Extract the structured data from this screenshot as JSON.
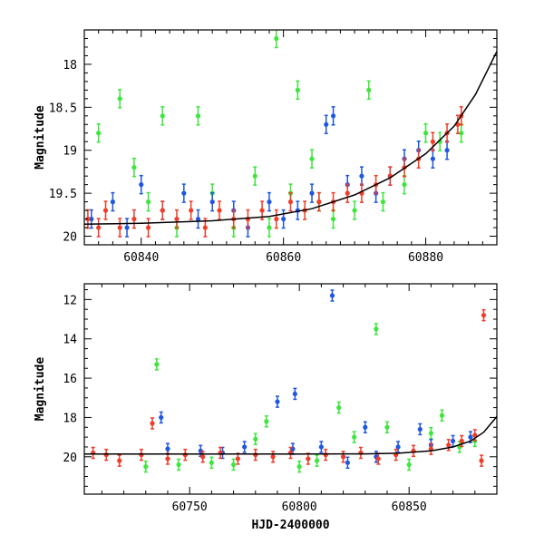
{
  "colors": {
    "blue": "#1f57e0",
    "green": "#3ce63c",
    "red": "#f03c28",
    "model": "#000000",
    "frame": "#000000"
  },
  "chart_data": [
    {
      "type": "scatter",
      "title": "",
      "xlabel": "",
      "ylabel": "Magnitude",
      "xlim": [
        60832,
        60890
      ],
      "ylim": [
        20.1,
        17.6
      ],
      "y_inverted": true,
      "x_ticks": [
        60840,
        60860,
        60880
      ],
      "y_ticks": [
        18,
        18.5,
        19,
        19.5,
        20
      ],
      "grid": false,
      "legend": "none",
      "series": [
        {
          "color": "blue",
          "error_bars": true,
          "points": [
            [
              60833,
              19.8
            ],
            [
              60836,
              19.6
            ],
            [
              60838,
              19.9
            ],
            [
              60840,
              19.4
            ],
            [
              60843,
              19.7
            ],
            [
              60846,
              19.5
            ],
            [
              60848,
              19.8
            ],
            [
              60850,
              19.6
            ],
            [
              60853,
              19.7
            ],
            [
              60855,
              19.9
            ],
            [
              60858,
              19.6
            ],
            [
              60860,
              19.8
            ],
            [
              60862,
              19.7
            ],
            [
              60864,
              19.5
            ],
            [
              60866,
              18.7
            ],
            [
              60867,
              18.6
            ],
            [
              60869,
              19.4
            ],
            [
              60871,
              19.3
            ],
            [
              60873,
              19.5
            ],
            [
              60875,
              19.3
            ],
            [
              60877,
              19.1
            ],
            [
              60879,
              19.0
            ],
            [
              60881,
              19.1
            ],
            [
              60883,
              19.0
            ]
          ]
        },
        {
          "color": "green",
          "error_bars": true,
          "points": [
            [
              60834,
              18.8
            ],
            [
              60837,
              18.4
            ],
            [
              60839,
              19.2
            ],
            [
              60841,
              19.6
            ],
            [
              60843,
              18.6
            ],
            [
              60845,
              19.9
            ],
            [
              60848,
              18.6
            ],
            [
              60850,
              19.5
            ],
            [
              60853,
              19.9
            ],
            [
              60856,
              19.3
            ],
            [
              60858,
              19.9
            ],
            [
              60859,
              17.7
            ],
            [
              60861,
              19.5
            ],
            [
              60862,
              18.3
            ],
            [
              60864,
              19.1
            ],
            [
              60865,
              19.6
            ],
            [
              60867,
              19.8
            ],
            [
              60870,
              19.7
            ],
            [
              60872,
              18.3
            ],
            [
              60874,
              19.6
            ],
            [
              60877,
              19.4
            ],
            [
              60880,
              18.8
            ],
            [
              60882,
              18.9
            ],
            [
              60885,
              18.8
            ]
          ]
        },
        {
          "color": "red",
          "error_bars": true,
          "points": [
            [
              60832.5,
              19.8
            ],
            [
              60834,
              19.9
            ],
            [
              60835,
              19.7
            ],
            [
              60837,
              19.9
            ],
            [
              60839,
              19.8
            ],
            [
              60841,
              19.9
            ],
            [
              60843,
              19.7
            ],
            [
              60845,
              19.8
            ],
            [
              60847,
              19.7
            ],
            [
              60849,
              19.9
            ],
            [
              60851,
              19.7
            ],
            [
              60853,
              19.8
            ],
            [
              60855,
              19.8
            ],
            [
              60857,
              19.7
            ],
            [
              60859,
              19.8
            ],
            [
              60861,
              19.6
            ],
            [
              60863,
              19.7
            ],
            [
              60865,
              19.6
            ],
            [
              60867,
              19.6
            ],
            [
              60869,
              19.5
            ],
            [
              60871,
              19.5
            ],
            [
              60873,
              19.4
            ],
            [
              60875,
              19.3
            ],
            [
              60877,
              19.2
            ],
            [
              60879,
              19.1
            ],
            [
              60881,
              18.9
            ],
            [
              60883,
              18.8
            ],
            [
              60884.5,
              18.7
            ],
            [
              60885,
              18.6
            ]
          ]
        }
      ],
      "model_curve": [
        [
          60832,
          19.86
        ],
        [
          60840,
          19.85
        ],
        [
          60850,
          19.82
        ],
        [
          60858,
          19.77
        ],
        [
          60864,
          19.68
        ],
        [
          60870,
          19.52
        ],
        [
          60875,
          19.32
        ],
        [
          60880,
          19.04
        ],
        [
          60884,
          18.72
        ],
        [
          60887,
          18.35
        ],
        [
          60890,
          17.85
        ]
      ]
    },
    {
      "type": "scatter",
      "title": "",
      "xlabel": "HJD-2400000",
      "ylabel": "Magnitude",
      "xlim": [
        60702,
        60890
      ],
      "ylim": [
        21.9,
        11.2
      ],
      "y_inverted": true,
      "x_ticks": [
        60750,
        60800,
        60850
      ],
      "y_ticks": [
        12,
        14,
        16,
        18,
        20
      ],
      "grid": false,
      "legend": "none",
      "series": [
        {
          "color": "blue",
          "error_bars": true,
          "points": [
            [
              60737,
              18.0
            ],
            [
              60740,
              19.6
            ],
            [
              60755,
              19.7
            ],
            [
              60765,
              19.8
            ],
            [
              60775,
              19.5
            ],
            [
              60790,
              17.2
            ],
            [
              60797,
              19.6
            ],
            [
              60798,
              16.8
            ],
            [
              60810,
              19.5
            ],
            [
              60815,
              11.8
            ],
            [
              60822,
              20.3
            ],
            [
              60830,
              18.5
            ],
            [
              60835,
              20.0
            ],
            [
              60845,
              19.5
            ],
            [
              60855,
              18.6
            ],
            [
              60860,
              19.4
            ],
            [
              60870,
              19.2
            ],
            [
              60878,
              19.0
            ]
          ]
        },
        {
          "color": "green",
          "error_bars": true,
          "points": [
            [
              60735,
              15.3
            ],
            [
              60730,
              20.5
            ],
            [
              60745,
              20.4
            ],
            [
              60760,
              20.3
            ],
            [
              60770,
              20.4
            ],
            [
              60780,
              19.1
            ],
            [
              60785,
              18.2
            ],
            [
              60800,
              20.5
            ],
            [
              60808,
              20.2
            ],
            [
              60818,
              17.5
            ],
            [
              60825,
              19.0
            ],
            [
              60835,
              13.5
            ],
            [
              60840,
              18.5
            ],
            [
              60850,
              20.4
            ],
            [
              60860,
              18.8
            ],
            [
              60865,
              17.9
            ],
            [
              60873,
              19.5
            ],
            [
              60880,
              19.2
            ]
          ]
        },
        {
          "color": "red",
          "error_bars": true,
          "points": [
            [
              60706,
              19.8
            ],
            [
              60712,
              19.9
            ],
            [
              60718,
              20.2
            ],
            [
              60728,
              19.9
            ],
            [
              60733,
              18.3
            ],
            [
              60740,
              20.1
            ],
            [
              60748,
              19.9
            ],
            [
              60756,
              20.0
            ],
            [
              60764,
              19.8
            ],
            [
              60772,
              20.1
            ],
            [
              60780,
              19.9
            ],
            [
              60788,
              20.0
            ],
            [
              60796,
              19.8
            ],
            [
              60804,
              20.1
            ],
            [
              60812,
              19.9
            ],
            [
              60820,
              20.0
            ],
            [
              60828,
              19.8
            ],
            [
              60836,
              20.1
            ],
            [
              60844,
              19.9
            ],
            [
              60852,
              19.7
            ],
            [
              60860,
              19.6
            ],
            [
              60868,
              19.4
            ],
            [
              60874,
              19.2
            ],
            [
              60880,
              18.9
            ],
            [
              60883,
              20.2
            ],
            [
              60884,
              12.8
            ]
          ]
        }
      ],
      "model_curve": [
        [
          60702,
          19.86
        ],
        [
          60750,
          19.86
        ],
        [
          60800,
          19.86
        ],
        [
          60830,
          19.85
        ],
        [
          60845,
          19.82
        ],
        [
          60860,
          19.7
        ],
        [
          60870,
          19.5
        ],
        [
          60878,
          19.2
        ],
        [
          60884,
          18.75
        ],
        [
          60890,
          17.95
        ]
      ]
    }
  ]
}
